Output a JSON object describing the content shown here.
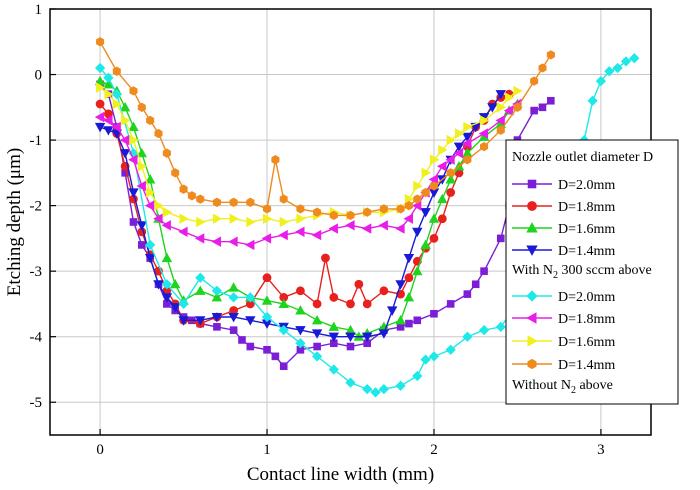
{
  "chart_data": {
    "type": "line",
    "xlabel": "Contact line width (mm)",
    "ylabel_main": "Etching depth (",
    "ylabel_unit": "μm",
    "ylabel_close": ")",
    "xlim": [
      -0.3,
      3.3
    ],
    "ylim": [
      -5.5,
      1
    ],
    "xticks": [
      0,
      1,
      2,
      3
    ],
    "xtick_labels": [
      "0",
      "1",
      "2",
      "3"
    ],
    "yticks": [
      1,
      0,
      -1,
      -2,
      -3,
      -4,
      -5
    ],
    "ytick_labels": [
      "1",
      "0",
      "-1",
      "-2",
      "-3",
      "-4",
      "-5"
    ],
    "grid": true,
    "legend_position": "right",
    "legend": {
      "group1_title": "Nozzle outlet diameter D",
      "group2_title_pre": "With N",
      "group2_title_sub": "2",
      "group2_title_post": " 300 sccm above",
      "group3_title_pre": "Without N",
      "group3_title_sub": "2",
      "group3_title_post": " above"
    },
    "series": [
      {
        "name": "D=2.0mm",
        "color": "#7b1fd6",
        "marker": "square",
        "x": [
          0.0,
          0.05,
          0.1,
          0.15,
          0.2,
          0.25,
          0.3,
          0.35,
          0.4,
          0.45,
          0.5,
          0.55,
          0.6,
          0.7,
          0.8,
          0.85,
          0.9,
          1.0,
          1.05,
          1.1,
          1.2,
          1.3,
          1.4,
          1.5,
          1.6,
          1.7,
          1.8,
          1.85,
          1.9,
          2.0,
          2.1,
          2.2,
          2.25,
          2.3,
          2.4,
          2.45,
          2.5,
          2.6,
          2.65,
          2.7
        ],
        "y": [
          -0.15,
          -0.3,
          -0.8,
          -1.5,
          -2.25,
          -2.6,
          -2.8,
          -3.2,
          -3.5,
          -3.6,
          -3.7,
          -3.75,
          -3.8,
          -3.85,
          -3.9,
          -4.05,
          -4.15,
          -4.2,
          -4.3,
          -4.45,
          -4.2,
          -4.15,
          -4.1,
          -4.15,
          -4.1,
          -3.9,
          -3.85,
          -3.8,
          -3.75,
          -3.65,
          -3.5,
          -3.35,
          -3.2,
          -3.0,
          -2.5,
          -2.0,
          -1.0,
          -0.55,
          -0.5,
          -0.4
        ]
      },
      {
        "name": "D=1.8mm",
        "color": "#e8201e",
        "marker": "circle",
        "x": [
          0.0,
          0.05,
          0.1,
          0.15,
          0.2,
          0.25,
          0.3,
          0.35,
          0.4,
          0.45,
          0.5,
          0.6,
          0.7,
          0.8,
          0.9,
          1.0,
          1.1,
          1.2,
          1.3,
          1.35,
          1.4,
          1.5,
          1.55,
          1.6,
          1.7,
          1.8,
          1.85,
          1.9,
          1.95,
          2.0,
          2.05,
          2.1,
          2.15,
          2.2,
          2.25,
          2.3,
          2.35,
          2.4,
          2.45
        ],
        "y": [
          -0.45,
          -0.6,
          -0.9,
          -1.4,
          -1.9,
          -2.4,
          -2.75,
          -3.0,
          -3.3,
          -3.5,
          -3.75,
          -3.8,
          -3.7,
          -3.6,
          -3.5,
          -3.1,
          -3.4,
          -3.3,
          -3.5,
          -2.8,
          -3.4,
          -3.5,
          -3.2,
          -3.5,
          -3.3,
          -3.35,
          -3.1,
          -2.85,
          -2.65,
          -2.5,
          -2.2,
          -1.8,
          -1.5,
          -1.1,
          -0.8,
          -0.7,
          -0.45,
          -0.35,
          -0.3
        ]
      },
      {
        "name": "D=1.6mm",
        "color": "#1fd41f",
        "marker": "triangle-up",
        "x": [
          0.0,
          0.05,
          0.1,
          0.15,
          0.2,
          0.25,
          0.3,
          0.35,
          0.4,
          0.45,
          0.5,
          0.6,
          0.7,
          0.8,
          0.9,
          1.0,
          1.1,
          1.2,
          1.3,
          1.4,
          1.5,
          1.55,
          1.6,
          1.7,
          1.8,
          1.85,
          1.9,
          1.95,
          2.0,
          2.05,
          2.1,
          2.15,
          2.2,
          2.3,
          2.4,
          2.45,
          2.5
        ],
        "y": [
          -0.1,
          -0.15,
          -0.25,
          -0.5,
          -0.8,
          -1.2,
          -1.6,
          -2.2,
          -2.8,
          -3.2,
          -3.45,
          -3.3,
          -3.4,
          -3.25,
          -3.4,
          -3.45,
          -3.5,
          -3.6,
          -3.75,
          -3.85,
          -3.9,
          -4.0,
          -3.95,
          -3.85,
          -3.75,
          -3.4,
          -3.0,
          -2.6,
          -2.2,
          -1.9,
          -1.6,
          -1.4,
          -1.2,
          -0.95,
          -0.75,
          -0.55,
          -0.45
        ]
      },
      {
        "name": "D=1.4mm",
        "color": "#1a1ad6",
        "marker": "triangle-down",
        "x": [
          0.0,
          0.05,
          0.1,
          0.15,
          0.2,
          0.25,
          0.3,
          0.35,
          0.4,
          0.45,
          0.5,
          0.6,
          0.7,
          0.8,
          0.9,
          1.0,
          1.1,
          1.2,
          1.3,
          1.4,
          1.5,
          1.6,
          1.7,
          1.75,
          1.8,
          1.85,
          1.9,
          1.95,
          2.0,
          2.05,
          2.1,
          2.15,
          2.2,
          2.25,
          2.3,
          2.35,
          2.4
        ],
        "y": [
          -0.8,
          -0.85,
          -0.9,
          -1.2,
          -1.8,
          -2.3,
          -2.8,
          -3.2,
          -3.4,
          -3.55,
          -3.75,
          -3.75,
          -3.7,
          -3.7,
          -3.75,
          -3.8,
          -3.85,
          -3.9,
          -3.95,
          -4.0,
          -4.0,
          -4.0,
          -3.95,
          -3.6,
          -3.2,
          -2.8,
          -2.4,
          -2.1,
          -1.8,
          -1.6,
          -1.3,
          -1.1,
          -0.95,
          -0.8,
          -0.65,
          -0.5,
          -0.3
        ]
      },
      {
        "name": "D=2.0mm",
        "color": "#1ee8e8",
        "marker": "diamond",
        "x": [
          0.0,
          0.05,
          0.1,
          0.2,
          0.3,
          0.4,
          0.5,
          0.6,
          0.7,
          0.8,
          0.9,
          1.0,
          1.1,
          1.2,
          1.3,
          1.4,
          1.5,
          1.6,
          1.65,
          1.7,
          1.8,
          1.9,
          1.95,
          2.0,
          2.1,
          2.2,
          2.3,
          2.4,
          2.5,
          2.6,
          2.7,
          2.75,
          2.8,
          2.85,
          2.9,
          2.95,
          3.0,
          3.05,
          3.1,
          3.15,
          3.2
        ],
        "y": [
          0.1,
          -0.05,
          -0.3,
          -1.2,
          -2.6,
          -3.2,
          -3.5,
          -3.1,
          -3.3,
          -3.4,
          -3.4,
          -3.7,
          -3.9,
          -4.1,
          -4.3,
          -4.5,
          -4.7,
          -4.8,
          -4.85,
          -4.8,
          -4.75,
          -4.6,
          -4.35,
          -4.3,
          -4.2,
          -4.0,
          -3.9,
          -3.85,
          -3.5,
          -3.3,
          -3.1,
          -2.8,
          -2.4,
          -1.8,
          -1.0,
          -0.4,
          -0.1,
          0.05,
          0.1,
          0.2,
          0.25
        ]
      },
      {
        "name": "D=1.8mm",
        "color": "#e81ee8",
        "marker": "triangle-left",
        "x": [
          0.0,
          0.05,
          0.1,
          0.15,
          0.2,
          0.25,
          0.3,
          0.35,
          0.4,
          0.5,
          0.6,
          0.7,
          0.8,
          0.9,
          1.0,
          1.1,
          1.2,
          1.3,
          1.4,
          1.5,
          1.6,
          1.7,
          1.8,
          1.85,
          1.9,
          1.95,
          2.0,
          2.05,
          2.1,
          2.15,
          2.2,
          2.3,
          2.4,
          2.45,
          2.5
        ],
        "y": [
          -0.65,
          -0.7,
          -0.8,
          -1.0,
          -1.3,
          -1.7,
          -2.0,
          -2.2,
          -2.3,
          -2.4,
          -2.5,
          -2.55,
          -2.55,
          -2.6,
          -2.5,
          -2.45,
          -2.4,
          -2.45,
          -2.35,
          -2.3,
          -2.35,
          -2.3,
          -2.35,
          -2.2,
          -2.0,
          -1.8,
          -1.6,
          -1.4,
          -1.3,
          -1.2,
          -1.05,
          -0.9,
          -0.7,
          -0.55,
          -0.45
        ]
      },
      {
        "name": "D=1.6mm",
        "color": "#f0f01e",
        "marker": "triangle-right",
        "x": [
          0.0,
          0.05,
          0.1,
          0.15,
          0.2,
          0.25,
          0.3,
          0.35,
          0.4,
          0.5,
          0.6,
          0.7,
          0.8,
          0.9,
          1.0,
          1.1,
          1.2,
          1.3,
          1.4,
          1.5,
          1.6,
          1.7,
          1.8,
          1.85,
          1.9,
          1.95,
          2.0,
          2.05,
          2.1,
          2.15,
          2.2,
          2.3,
          2.4,
          2.45,
          2.5
        ],
        "y": [
          -0.2,
          -0.3,
          -0.45,
          -0.7,
          -1.0,
          -1.4,
          -1.8,
          -2.0,
          -2.1,
          -2.2,
          -2.25,
          -2.2,
          -2.2,
          -2.25,
          -2.2,
          -2.25,
          -2.2,
          -2.15,
          -2.1,
          -2.15,
          -2.1,
          -2.1,
          -2.05,
          -1.9,
          -1.7,
          -1.5,
          -1.3,
          -1.15,
          -1.0,
          -0.9,
          -0.8,
          -0.7,
          -0.5,
          -0.35,
          -0.25
        ]
      },
      {
        "name": "D=1.4mm",
        "color": "#ef8a1e",
        "marker": "hexagon",
        "x": [
          0.0,
          0.1,
          0.2,
          0.25,
          0.3,
          0.35,
          0.4,
          0.45,
          0.5,
          0.55,
          0.6,
          0.7,
          0.8,
          0.9,
          1.0,
          1.05,
          1.1,
          1.2,
          1.3,
          1.4,
          1.5,
          1.6,
          1.7,
          1.8,
          1.85,
          1.9,
          1.95,
          2.0,
          2.1,
          2.2,
          2.3,
          2.4,
          2.5,
          2.6,
          2.65,
          2.7
        ],
        "y": [
          0.5,
          0.05,
          -0.25,
          -0.5,
          -0.7,
          -0.9,
          -1.2,
          -1.5,
          -1.75,
          -1.85,
          -1.9,
          -1.95,
          -1.95,
          -1.95,
          -2.05,
          -1.3,
          -1.9,
          -2.05,
          -2.1,
          -2.15,
          -2.15,
          -2.1,
          -2.05,
          -2.05,
          -2.0,
          -1.9,
          -1.8,
          -1.7,
          -1.5,
          -1.3,
          -1.1,
          -0.85,
          -0.5,
          -0.1,
          0.1,
          0.3
        ]
      }
    ]
  }
}
